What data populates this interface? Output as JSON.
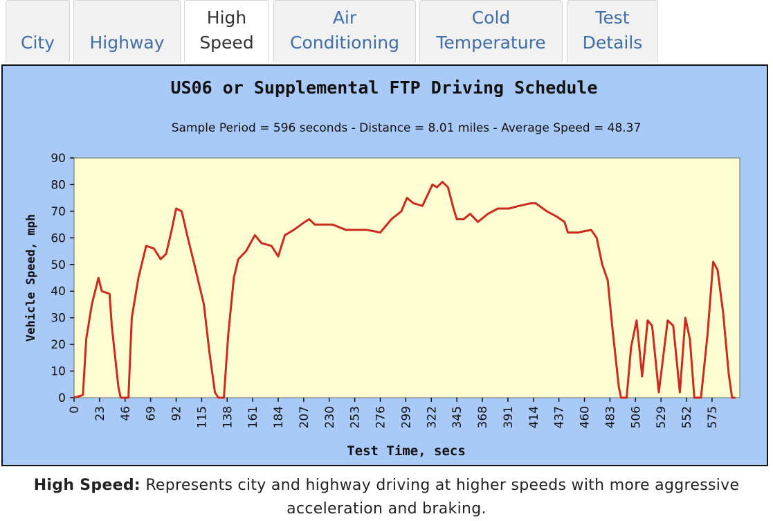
{
  "tabs": [
    {
      "lines": [
        "City"
      ],
      "active": false
    },
    {
      "lines": [
        "Highway"
      ],
      "active": false
    },
    {
      "lines": [
        "High",
        "Speed"
      ],
      "active": true
    },
    {
      "lines": [
        "Air",
        "Conditioning"
      ],
      "active": false
    },
    {
      "lines": [
        "Cold",
        "Temperature"
      ],
      "active": false
    },
    {
      "lines": [
        "Test",
        "Details"
      ],
      "active": false
    }
  ],
  "chart_data": {
    "type": "line",
    "title": "US06 or Supplemental FTP Driving Schedule",
    "subtitle": "Sample Period = 596 seconds - Distance = 8.01 miles - Average Speed = 48.37",
    "x_label": "Test Time, secs",
    "y_label": "Vehicle Speed, mph",
    "x": [
      0,
      8,
      11,
      16,
      22,
      25,
      32,
      34,
      40,
      42,
      49,
      52,
      58,
      65,
      72,
      78,
      83,
      88,
      92,
      97,
      102,
      109,
      117,
      122,
      127,
      130,
      135,
      139,
      144,
      148,
      155,
      163,
      169,
      178,
      184,
      190,
      198,
      208,
      212,
      217,
      233,
      245,
      264,
      276,
      286,
      295,
      300,
      306,
      314,
      323,
      327,
      332,
      337,
      342,
      345,
      351,
      357,
      364,
      373,
      382,
      392,
      401,
      412,
      416,
      426,
      435,
      442,
      445,
      454,
      466,
      471,
      476,
      481,
      485,
      491,
      493,
      498,
      502,
      507,
      512,
      517,
      521,
      527,
      535,
      540,
      546,
      551,
      555,
      559,
      565,
      571,
      576,
      580,
      585,
      590,
      593,
      596
    ],
    "series": [
      {
        "name": "Vehicle Speed",
        "color": "#cc2a1e",
        "values": [
          0,
          1,
          22,
          35,
          45,
          40,
          39,
          27,
          4,
          0,
          0,
          30,
          45,
          57,
          56,
          52,
          54,
          63,
          71,
          70,
          61,
          49,
          35,
          17,
          2,
          0,
          0,
          24,
          45,
          52,
          55,
          61,
          58,
          57,
          53,
          61,
          63,
          66,
          67,
          65,
          65,
          63,
          63,
          62,
          67,
          70,
          75,
          73,
          72,
          80,
          79,
          81,
          79,
          71,
          67,
          67,
          69,
          66,
          69,
          71,
          71,
          72,
          73,
          73,
          70,
          68,
          66,
          62,
          62,
          63,
          60,
          50,
          44,
          27,
          4,
          0,
          0,
          19,
          29,
          8,
          29,
          27,
          2,
          29,
          27,
          2,
          30,
          22,
          0,
          0,
          24,
          51,
          48,
          32,
          9,
          0,
          0
        ]
      }
    ],
    "xlim": [
      0,
      600
    ],
    "xticks": [
      0,
      23,
      46,
      69,
      92,
      115,
      138,
      161,
      184,
      207,
      230,
      253,
      276,
      299,
      322,
      345,
      368,
      391,
      414,
      437,
      460,
      483,
      506,
      529,
      552,
      575
    ],
    "ylim": [
      0,
      90
    ],
    "yticks": [
      0,
      10,
      20,
      30,
      40,
      50,
      60,
      70,
      80,
      90
    ]
  },
  "caption": {
    "lead": "High Speed:",
    "text": "Represents city and highway driving at higher speeds with more aggressive acceleration and braking."
  }
}
